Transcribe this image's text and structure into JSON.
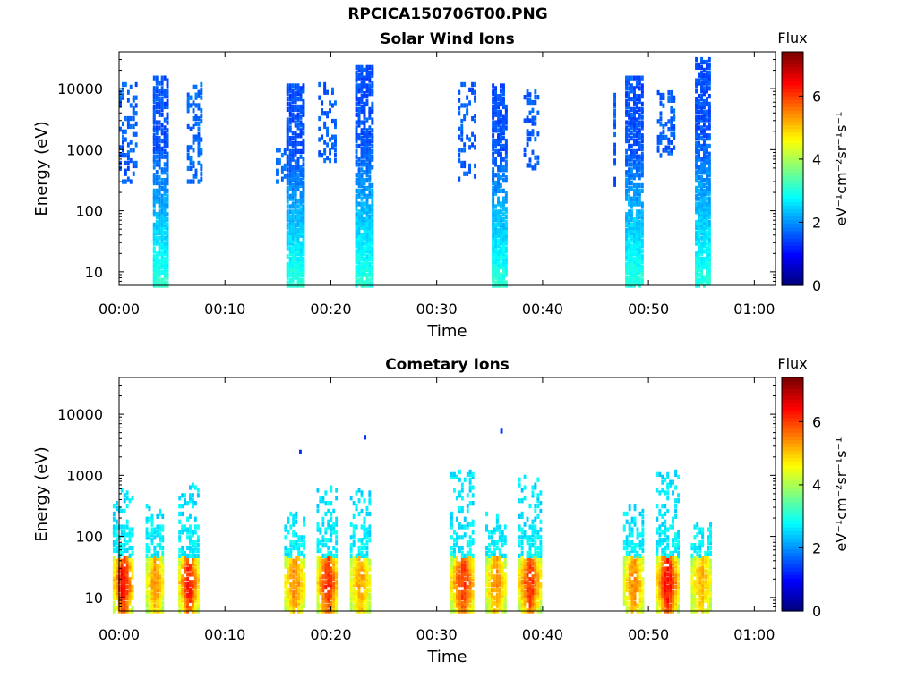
{
  "page_title": "RPCICA150706T00.PNG",
  "chart_data": [
    {
      "type": "heatmap",
      "title": "Solar Wind Ions",
      "xlabel": "Time",
      "ylabel": "Energy (eV)",
      "x_ticks": [
        "00:00",
        "00:10",
        "00:20",
        "00:30",
        "00:40",
        "00:50",
        "01:00"
      ],
      "xlim_minutes": [
        0,
        62
      ],
      "y_scale": "log",
      "ylim": [
        6,
        40000
      ],
      "y_ticks": [
        10,
        100,
        1000,
        10000
      ],
      "y_tick_labels": [
        "10",
        "100",
        "1000",
        "10000"
      ],
      "colorbar": {
        "title": "Flux",
        "unit": "eV⁻¹cm⁻²sr⁻¹s⁻¹",
        "range": [
          0,
          7.4
        ],
        "ticks": [
          "0",
          "2",
          "4",
          "6"
        ],
        "colormap": "jet"
      },
      "bursts": [
        {
          "t_start": 3.2,
          "t_end": 4.6,
          "e_min": 6,
          "e_max": 15000,
          "flux_low": 3.1,
          "flux_high": 1.5
        },
        {
          "t_start": 15.8,
          "t_end": 17.3,
          "e_min": 6,
          "e_max": 12000,
          "flux_low": 3.1,
          "flux_high": 1.5
        },
        {
          "t_start": 22.3,
          "t_end": 23.8,
          "e_min": 6,
          "e_max": 24000,
          "flux_low": 3.1,
          "flux_high": 1.5
        },
        {
          "t_start": 35.2,
          "t_end": 36.6,
          "e_min": 6,
          "e_max": 12000,
          "flux_low": 3.1,
          "flux_high": 1.5
        },
        {
          "t_start": 47.8,
          "t_end": 49.3,
          "e_min": 6,
          "e_max": 15000,
          "flux_low": 3.1,
          "flux_high": 1.5
        },
        {
          "t_start": 54.4,
          "t_end": 55.8,
          "e_min": 6,
          "e_max": 32000,
          "flux_low": 3.1,
          "flux_high": 1.5
        }
      ],
      "sparse_patches": [
        {
          "t_start": 0.0,
          "t_end": 1.5,
          "e_min": 300,
          "e_max": 12000,
          "flux": 1.6
        },
        {
          "t_start": 6.4,
          "t_end": 7.8,
          "e_min": 300,
          "e_max": 12000,
          "flux": 1.7
        },
        {
          "t_start": 14.8,
          "t_end": 15.6,
          "e_min": 300,
          "e_max": 1000,
          "flux": 1.7
        },
        {
          "t_start": 18.8,
          "t_end": 20.5,
          "e_min": 600,
          "e_max": 12000,
          "flux": 1.6
        },
        {
          "t_start": 32.0,
          "t_end": 33.5,
          "e_min": 300,
          "e_max": 12000,
          "flux": 1.6
        },
        {
          "t_start": 38.2,
          "t_end": 39.5,
          "e_min": 500,
          "e_max": 9000,
          "flux": 1.6
        },
        {
          "t_start": 50.8,
          "t_end": 52.5,
          "e_min": 800,
          "e_max": 9000,
          "flux": 1.6
        },
        {
          "t_start": 46.7,
          "t_end": 46.9,
          "e_min": 200,
          "e_max": 9000,
          "flux": 1.6
        }
      ]
    },
    {
      "type": "heatmap",
      "title": "Cometary Ions",
      "xlabel": "Time",
      "ylabel": "Energy (eV)",
      "x_ticks": [
        "00:00",
        "00:10",
        "00:20",
        "00:30",
        "00:40",
        "00:50",
        "01:00"
      ],
      "xlim_minutes": [
        0,
        62
      ],
      "y_scale": "log",
      "ylim": [
        6,
        40000
      ],
      "y_ticks": [
        10,
        100,
        1000,
        10000
      ],
      "y_tick_labels": [
        "10",
        "100",
        "1000",
        "10000"
      ],
      "colorbar": {
        "title": "Flux",
        "unit": "eV⁻¹cm⁻²sr⁻¹s⁻¹",
        "range": [
          0,
          7.4
        ],
        "ticks": [
          "0",
          "2",
          "4",
          "6"
        ],
        "colormap": "jet"
      },
      "bursts": [
        {
          "t_center": 0.3,
          "width": 1.8,
          "peak_flux": 6.3,
          "e_top": 600
        },
        {
          "t_center": 3.3,
          "width": 1.6,
          "peak_flux": 5.3,
          "e_top": 320
        },
        {
          "t_center": 6.5,
          "width": 1.8,
          "peak_flux": 6.2,
          "e_top": 800
        },
        {
          "t_center": 16.5,
          "width": 1.8,
          "peak_flux": 5.4,
          "e_top": 250
        },
        {
          "t_center": 19.6,
          "width": 1.9,
          "peak_flux": 6.1,
          "e_top": 650
        },
        {
          "t_center": 22.7,
          "width": 1.8,
          "peak_flux": 5.2,
          "e_top": 600
        },
        {
          "t_center": 32.4,
          "width": 2.2,
          "peak_flux": 6.0,
          "e_top": 1200
        },
        {
          "t_center": 35.5,
          "width": 1.8,
          "peak_flux": 5.4,
          "e_top": 250
        },
        {
          "t_center": 38.7,
          "width": 2.0,
          "peak_flux": 6.0,
          "e_top": 950
        },
        {
          "t_center": 48.5,
          "width": 1.8,
          "peak_flux": 5.4,
          "e_top": 320
        },
        {
          "t_center": 51.7,
          "width": 2.0,
          "peak_flux": 6.3,
          "e_top": 1200
        },
        {
          "t_center": 54.9,
          "width": 1.8,
          "peak_flux": 5.1,
          "e_top": 180
        }
      ],
      "isolated_points": [
        {
          "t": 17.0,
          "e": 2400,
          "flux": 1.3
        },
        {
          "t": 23.1,
          "e": 4200,
          "flux": 1.3
        },
        {
          "t": 36.0,
          "e": 5300,
          "flux": 1.3
        }
      ]
    }
  ]
}
